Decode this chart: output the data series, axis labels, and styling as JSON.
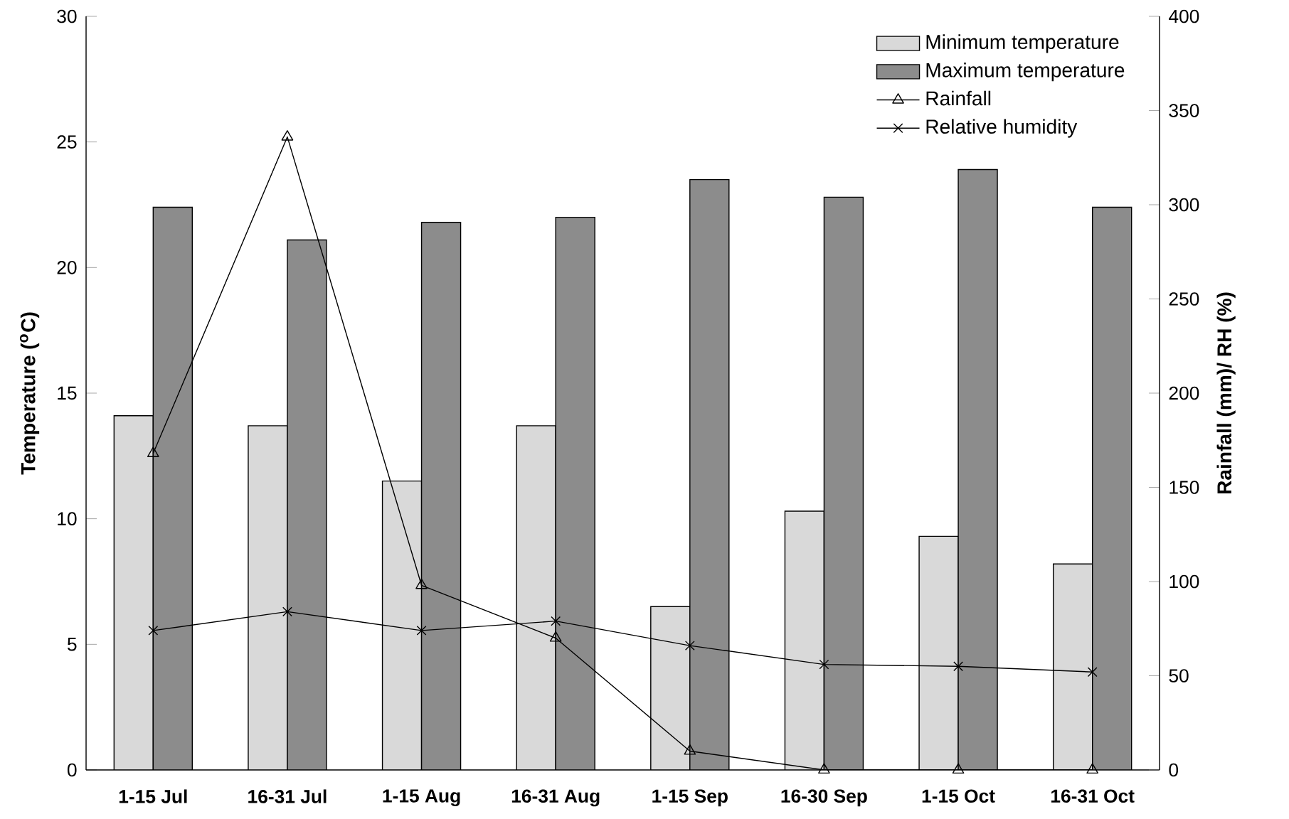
{
  "chart_data": {
    "type": "bar",
    "categories": [
      "1-15 Jul",
      "16-31 Jul",
      "1-15 Aug",
      "16-31 Aug",
      "1-15 Sep",
      "16-30 Sep",
      "1-15 Oct",
      "16-31 Oct"
    ],
    "ylabel": "Temperature ($^{o}$C)",
    "y2label": "Rainfall (mm)/ RH (%)",
    "ylim": [
      0,
      30
    ],
    "yticks": [
      0,
      5,
      10,
      15,
      20,
      25,
      30
    ],
    "y2lim": [
      0,
      400
    ],
    "y2ticks": [
      0,
      50,
      100,
      150,
      200,
      250,
      300,
      350,
      400
    ],
    "legend": "top right",
    "series": [
      {
        "name": "Minimum temperature",
        "type": "bar",
        "color": "#d9d9d9",
        "values": [
          14.1,
          13.7,
          11.5,
          13.7,
          6.5,
          10.3,
          9.3,
          8.2
        ]
      },
      {
        "name": "Maximum temperature",
        "type": "bar",
        "color": "#8c8c8c",
        "values": [
          22.4,
          21.1,
          21.8,
          22.0,
          23.5,
          22.8,
          23.9,
          22.4
        ]
      },
      {
        "name": "Rainfall",
        "type": "line",
        "axis": "y2",
        "marker": "triangle",
        "color": "#000000",
        "values": [
          168,
          336,
          98,
          70,
          10,
          0,
          0,
          0
        ]
      },
      {
        "name": "Relative humidity",
        "type": "line",
        "axis": "y2",
        "marker": "cross",
        "color": "#000000",
        "values": [
          74,
          84,
          74,
          79,
          66,
          56,
          55,
          52
        ]
      }
    ]
  }
}
